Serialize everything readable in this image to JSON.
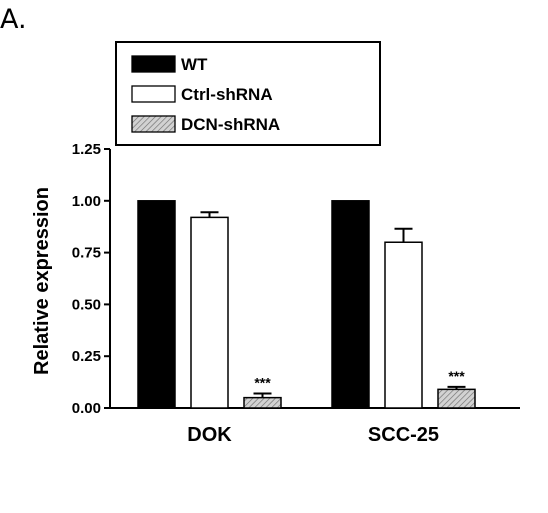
{
  "panel_label": "A.",
  "chart_data": {
    "type": "bar",
    "title": "",
    "xlabel": "",
    "ylabel": "Relative expression",
    "ylim": [
      0,
      1.25
    ],
    "yticks": [
      "0.00",
      "0.25",
      "0.50",
      "0.75",
      "1.00",
      "1.25"
    ],
    "categories": [
      "DOK",
      "SCC-25"
    ],
    "series": [
      {
        "name": "WT",
        "values": [
          1.0,
          1.0
        ],
        "errors": [
          0,
          0
        ],
        "fill": "#000000",
        "pattern": "solid"
      },
      {
        "name": "Ctrl-shRNA",
        "values": [
          0.92,
          0.8
        ],
        "errors": [
          0.025,
          0.065
        ],
        "fill": "#ffffff",
        "pattern": "solid"
      },
      {
        "name": "DCN-shRNA",
        "values": [
          0.05,
          0.09
        ],
        "errors": [
          0.02,
          0.012
        ],
        "fill": "#c8c8c8",
        "pattern": "hatched"
      }
    ],
    "annotations": [
      {
        "category": "DOK",
        "series": "DCN-shRNA",
        "text": "***"
      },
      {
        "category": "SCC-25",
        "series": "DCN-shRNA",
        "text": "***"
      }
    ],
    "legend_position": "top",
    "grid": false
  }
}
